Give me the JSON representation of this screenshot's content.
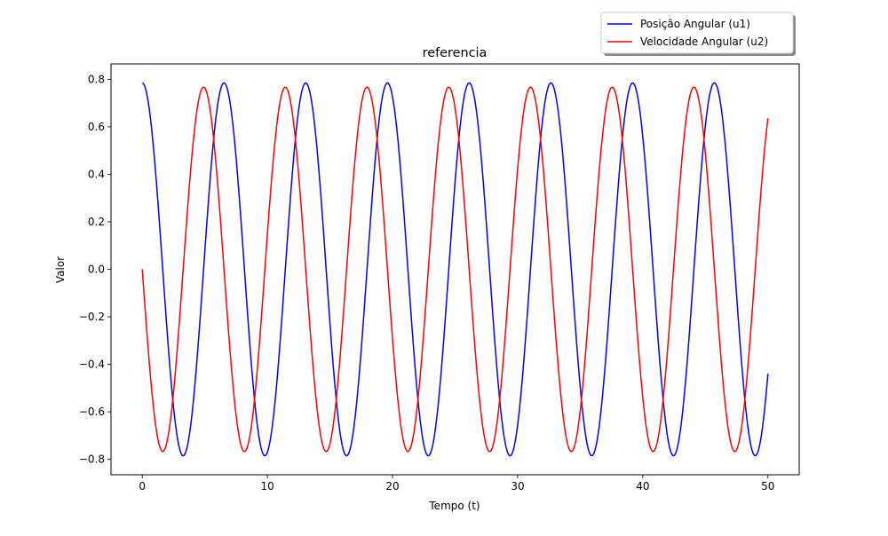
{
  "chart_data": {
    "type": "line",
    "title": "referencia",
    "xlabel": "Tempo (t)",
    "ylabel": "Valor",
    "xlim": [
      -2.5,
      52.5
    ],
    "ylim": [
      -0.865,
      0.865
    ],
    "xticks": [
      0,
      10,
      20,
      30,
      40,
      50
    ],
    "yticks": [
      -0.8,
      -0.6,
      -0.4,
      -0.2,
      0.0,
      0.2,
      0.4,
      0.6,
      0.8
    ],
    "xtick_labels": [
      "0",
      "10",
      "20",
      "30",
      "40",
      "50"
    ],
    "ytick_labels": [
      "−0.8",
      "−0.6",
      "−0.4",
      "−0.2",
      "0.0",
      "0.2",
      "0.4",
      "0.6",
      "0.8"
    ],
    "grid": false,
    "legend_position": "above-right",
    "x_range": [
      0,
      50
    ],
    "sample_count": 1001,
    "series": [
      {
        "name": "Posição Angular (u1)",
        "color": "#0000ff",
        "model": "amplitude * cos(omega * t)",
        "amplitude": 0.785,
        "omega": 0.962
      },
      {
        "name": "Velocidade Angular (u2)",
        "color": "#ff0000",
        "model": "-amplitude * sin(omega * t)",
        "amplitude": 0.767,
        "omega": 0.962
      }
    ]
  }
}
